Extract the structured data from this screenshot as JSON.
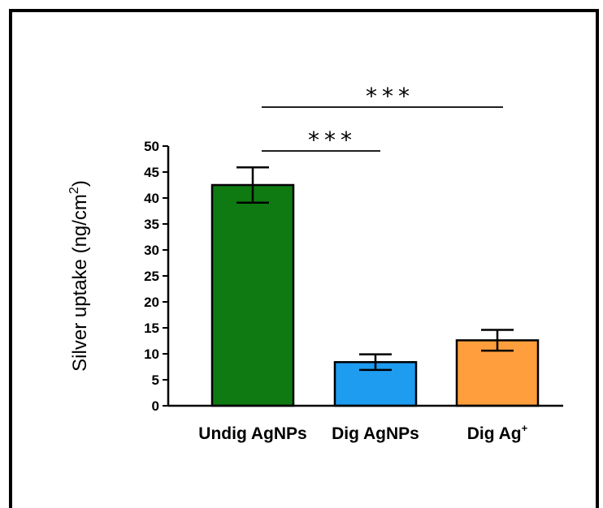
{
  "chart_data": {
    "type": "bar",
    "ylabel": "Silver uptake (ng/cm²)",
    "ylabel_base": "Silver uptake (ng/cm",
    "ylabel_sup": "2",
    "ylabel_end": ")",
    "ylim": [
      0,
      50
    ],
    "yticks": [
      0,
      5,
      10,
      15,
      20,
      25,
      30,
      35,
      40,
      45,
      50
    ],
    "categories": [
      "Undig AgNPs",
      "Dig AgNPs",
      "Dig Ag⁺"
    ],
    "category_parts": [
      {
        "text": "Undig AgNPs",
        "sup": ""
      },
      {
        "text": "Dig AgNPs",
        "sup": ""
      },
      {
        "text": "Dig Ag",
        "sup": "+"
      }
    ],
    "values": [
      42.5,
      8.4,
      12.6
    ],
    "errors": [
      3.4,
      1.5,
      2.0
    ],
    "colors": [
      "#0f7a12",
      "#1e9cf0",
      "#ff9e3d"
    ],
    "significance": [
      {
        "label": "***",
        "from": 0,
        "to": 2
      },
      {
        "label": "***",
        "from": 0,
        "to": 1
      }
    ],
    "grid": false,
    "legend": "none"
  }
}
